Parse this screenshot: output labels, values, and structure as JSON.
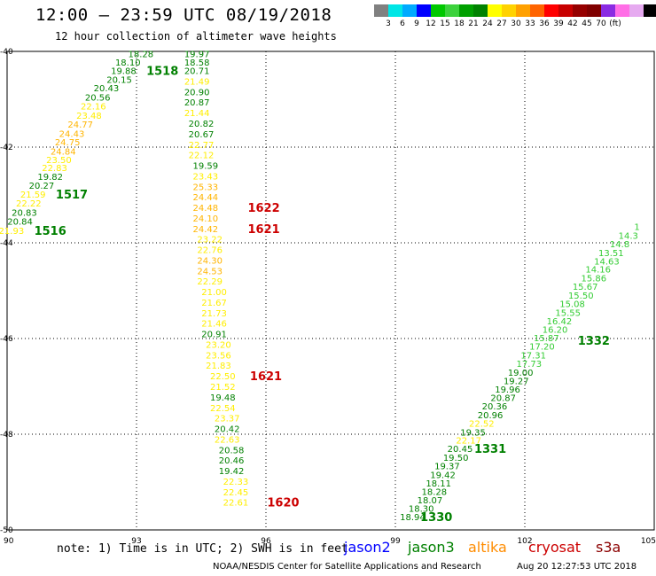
{
  "header": {
    "title": "12:00 – 23:59 UTC 08/19/2018",
    "subtitle": "12 hour collection of altimeter wave heights"
  },
  "colorbar": {
    "colors": [
      "#808080",
      "#00e6e6",
      "#00aaff",
      "#0000ff",
      "#00c800",
      "#3cd23c",
      "#00a000",
      "#008200",
      "#ffff00",
      "#ffd200",
      "#ffa000",
      "#ff6400",
      "#ff0000",
      "#c80000",
      "#960000",
      "#800000",
      "#8a2be2",
      "#ff6ee6",
      "#e6aaf0",
      "#000000"
    ],
    "labels": [
      "3",
      "6",
      "9",
      "12",
      "15",
      "18",
      "21",
      "24",
      "27",
      "30",
      "33",
      "36",
      "39",
      "42",
      "45",
      "70",
      "(ft)"
    ]
  },
  "note": "note:  1) Time is in UTC; 2) SWH is in feet",
  "legend": [
    {
      "name": "jason2",
      "color": "#0000ff"
    },
    {
      "name": "jason3",
      "color": "#008000"
    },
    {
      "name": "altika",
      "color": "#ff8c00"
    },
    {
      "name": "cryosat",
      "color": "#cc0000"
    },
    {
      "name": "s3a",
      "color": "#8b0000"
    }
  ],
  "footer": {
    "credit": "NOAA/NESDIS Center for Satellite Applications and Research",
    "stamp": "Aug 20 12:27:53 UTC 2018"
  },
  "chart_data": {
    "type": "scatter",
    "xlim": [
      90,
      105
    ],
    "ylim": [
      -50,
      -40
    ],
    "x_ticks": [
      "90",
      "93",
      "96",
      "99",
      "102",
      "105"
    ],
    "y_ticks": [
      "-40",
      "-42",
      "-44",
      "-46",
      "-48",
      "-50"
    ],
    "grid": true,
    "value_colors": {
      "15-18": "#33cc33",
      "18-21": "#008000",
      "21-24": "#ffee00",
      "24-27": "#ffb400"
    },
    "series": [
      {
        "name": "west track",
        "points": [
          {
            "x": 93.1,
            "y": -40.05,
            "v": "18.28"
          },
          {
            "x": 92.8,
            "y": -40.22,
            "v": "18.10"
          },
          {
            "x": 92.7,
            "y": -40.4,
            "v": "19.88"
          },
          {
            "x": 92.6,
            "y": -40.58,
            "v": "20.15"
          },
          {
            "x": 92.3,
            "y": -40.76,
            "v": "20.43"
          },
          {
            "x": 92.1,
            "y": -40.95,
            "v": "20.56"
          },
          {
            "x": 92.0,
            "y": -41.14,
            "v": "22.16"
          },
          {
            "x": 91.9,
            "y": -41.33,
            "v": "23.48"
          },
          {
            "x": 91.7,
            "y": -41.52,
            "v": "24.77"
          },
          {
            "x": 91.5,
            "y": -41.71,
            "v": "24.43"
          },
          {
            "x": 91.4,
            "y": -41.89,
            "v": "24.75"
          },
          {
            "x": 91.3,
            "y": -42.08,
            "v": "24.84"
          },
          {
            "x": 91.2,
            "y": -42.26,
            "v": "23.50"
          },
          {
            "x": 91.1,
            "y": -42.43,
            "v": "22.83"
          },
          {
            "x": 91.0,
            "y": -42.61,
            "v": "19.82"
          },
          {
            "x": 90.8,
            "y": -42.8,
            "v": "20.27"
          },
          {
            "x": 90.6,
            "y": -42.98,
            "v": "21.59"
          },
          {
            "x": 90.5,
            "y": -43.17,
            "v": "22.22"
          },
          {
            "x": 90.4,
            "y": -43.36,
            "v": "20.83"
          },
          {
            "x": 90.3,
            "y": -43.55,
            "v": "20.84"
          },
          {
            "x": 90.1,
            "y": -43.74,
            "v": "21.93"
          }
        ],
        "labels": [
          {
            "x": 93.6,
            "y": -40.4,
            "text": "1518",
            "color": "#008000"
          },
          {
            "x": 91.5,
            "y": -42.98,
            "text": "1517",
            "color": "#008000"
          },
          {
            "x": 91.0,
            "y": -43.74,
            "text": "1516",
            "color": "#008000"
          }
        ]
      },
      {
        "name": "central track",
        "points": [
          {
            "x": 94.4,
            "y": -40.05,
            "v": "19.97"
          },
          {
            "x": 94.4,
            "y": -40.22,
            "v": "18.58"
          },
          {
            "x": 94.4,
            "y": -40.4,
            "v": "20.71"
          },
          {
            "x": 94.4,
            "y": -40.62,
            "v": "21.49"
          },
          {
            "x": 94.4,
            "y": -40.84,
            "v": "20.90"
          },
          {
            "x": 94.4,
            "y": -41.06,
            "v": "20.87"
          },
          {
            "x": 94.4,
            "y": -41.28,
            "v": "21.44"
          },
          {
            "x": 94.5,
            "y": -41.5,
            "v": "20.82"
          },
          {
            "x": 94.5,
            "y": -41.72,
            "v": "20.67"
          },
          {
            "x": 94.5,
            "y": -41.94,
            "v": "22.77"
          },
          {
            "x": 94.5,
            "y": -42.16,
            "v": "22.12"
          },
          {
            "x": 94.6,
            "y": -42.38,
            "v": "19.59"
          },
          {
            "x": 94.6,
            "y": -42.6,
            "v": "23.43"
          },
          {
            "x": 94.6,
            "y": -42.82,
            "v": "25.33"
          },
          {
            "x": 94.6,
            "y": -43.04,
            "v": "24.44"
          },
          {
            "x": 94.6,
            "y": -43.26,
            "v": "24.48"
          },
          {
            "x": 94.6,
            "y": -43.48,
            "v": "24.10"
          },
          {
            "x": 94.6,
            "y": -43.7,
            "v": "24.42"
          },
          {
            "x": 94.7,
            "y": -43.92,
            "v": "23.22"
          },
          {
            "x": 94.7,
            "y": -44.14,
            "v": "22.76"
          },
          {
            "x": 94.7,
            "y": -44.36,
            "v": "24.30"
          },
          {
            "x": 94.7,
            "y": -44.58,
            "v": "24.53"
          },
          {
            "x": 94.7,
            "y": -44.8,
            "v": "22.29"
          },
          {
            "x": 94.8,
            "y": -45.02,
            "v": "21.00"
          },
          {
            "x": 94.8,
            "y": -45.24,
            "v": "21.67"
          },
          {
            "x": 94.8,
            "y": -45.46,
            "v": "21.73"
          },
          {
            "x": 94.8,
            "y": -45.68,
            "v": "21.46"
          },
          {
            "x": 94.8,
            "y": -45.9,
            "v": "20.91"
          },
          {
            "x": 94.9,
            "y": -46.12,
            "v": "23.20"
          },
          {
            "x": 94.9,
            "y": -46.34,
            "v": "23.56"
          },
          {
            "x": 94.9,
            "y": -46.56,
            "v": "21.83"
          },
          {
            "x": 95.0,
            "y": -46.78,
            "v": "22.50"
          },
          {
            "x": 95.0,
            "y": -47.0,
            "v": "21.52"
          },
          {
            "x": 95.0,
            "y": -47.22,
            "v": "19.48"
          },
          {
            "x": 95.0,
            "y": -47.44,
            "v": "22.54"
          },
          {
            "x": 95.1,
            "y": -47.66,
            "v": "23.37"
          },
          {
            "x": 95.1,
            "y": -47.88,
            "v": "20.42"
          },
          {
            "x": 95.1,
            "y": -48.1,
            "v": "22.63"
          },
          {
            "x": 95.2,
            "y": -48.32,
            "v": "20.58"
          },
          {
            "x": 95.2,
            "y": -48.54,
            "v": "20.46"
          },
          {
            "x": 95.2,
            "y": -48.76,
            "v": "19.42"
          },
          {
            "x": 95.3,
            "y": -48.98,
            "v": "22.33"
          },
          {
            "x": 95.3,
            "y": -49.2,
            "v": "22.45"
          },
          {
            "x": 95.3,
            "y": -49.42,
            "v": "22.61"
          }
        ],
        "labels": [
          {
            "x": 95.95,
            "y": -43.26,
            "text": "1622",
            "color": "#cc0000"
          },
          {
            "x": 95.95,
            "y": -43.7,
            "text": "1621",
            "color": "#cc0000"
          },
          {
            "x": 96.0,
            "y": -46.78,
            "text": "1621",
            "color": "#cc0000"
          },
          {
            "x": 96.4,
            "y": -49.42,
            "text": "1620",
            "color": "#cc0000"
          }
        ]
      },
      {
        "name": "east track",
        "points": [
          {
            "x": 99.4,
            "y": -49.72,
            "v": "18.94"
          },
          {
            "x": 99.6,
            "y": -49.55,
            "v": "18.30"
          },
          {
            "x": 99.8,
            "y": -49.37,
            "v": "18.07"
          },
          {
            "x": 99.9,
            "y": -49.19,
            "v": "18.28"
          },
          {
            "x": 100.0,
            "y": -49.02,
            "v": "18.11"
          },
          {
            "x": 100.1,
            "y": -48.84,
            "v": "19.42"
          },
          {
            "x": 100.2,
            "y": -48.66,
            "v": "19.37"
          },
          {
            "x": 100.4,
            "y": -48.48,
            "v": "19.50"
          },
          {
            "x": 100.5,
            "y": -48.3,
            "v": "20.45"
          },
          {
            "x": 100.7,
            "y": -48.12,
            "v": "22.17"
          },
          {
            "x": 100.8,
            "y": -47.95,
            "v": "19.35"
          },
          {
            "x": 101.0,
            "y": -47.77,
            "v": "22.52"
          },
          {
            "x": 101.2,
            "y": -47.59,
            "v": "20.96"
          },
          {
            "x": 101.3,
            "y": -47.41,
            "v": "20.36"
          },
          {
            "x": 101.5,
            "y": -47.23,
            "v": "20.87"
          },
          {
            "x": 101.6,
            "y": -47.06,
            "v": "19.96"
          },
          {
            "x": 101.8,
            "y": -46.88,
            "v": "19.27"
          },
          {
            "x": 101.9,
            "y": -46.7,
            "v": "19.00"
          },
          {
            "x": 102.1,
            "y": -46.52,
            "v": "17.73"
          },
          {
            "x": 102.2,
            "y": -46.34,
            "v": "17.31"
          },
          {
            "x": 102.4,
            "y": -46.16,
            "v": "17.20"
          },
          {
            "x": 102.5,
            "y": -45.98,
            "v": "15.87"
          },
          {
            "x": 102.7,
            "y": -45.81,
            "v": "16.20"
          },
          {
            "x": 102.8,
            "y": -45.63,
            "v": "16.42"
          },
          {
            "x": 103.0,
            "y": -45.45,
            "v": "15.55"
          },
          {
            "x": 103.1,
            "y": -45.27,
            "v": "15.08"
          },
          {
            "x": 103.3,
            "y": -45.09,
            "v": "15.50"
          },
          {
            "x": 103.4,
            "y": -44.91,
            "v": "15.67"
          },
          {
            "x": 103.6,
            "y": -44.73,
            "v": "15.86"
          },
          {
            "x": 103.7,
            "y": -44.55,
            "v": "14.16"
          },
          {
            "x": 103.9,
            "y": -44.38,
            "v": "14.63"
          },
          {
            "x": 104.0,
            "y": -44.2,
            "v": "13.51"
          },
          {
            "x": 104.2,
            "y": -44.02,
            "v": "14.8"
          },
          {
            "x": 104.4,
            "y": -43.84,
            "v": "14.3"
          },
          {
            "x": 104.6,
            "y": -43.66,
            "v": "1"
          }
        ],
        "labels": [
          {
            "x": 99.95,
            "y": -49.72,
            "text": "1330",
            "color": "#008000"
          },
          {
            "x": 101.2,
            "y": -48.3,
            "text": "1331",
            "color": "#008000"
          },
          {
            "x": 103.6,
            "y": -46.04,
            "text": "1332",
            "color": "#008000"
          }
        ]
      }
    ]
  }
}
